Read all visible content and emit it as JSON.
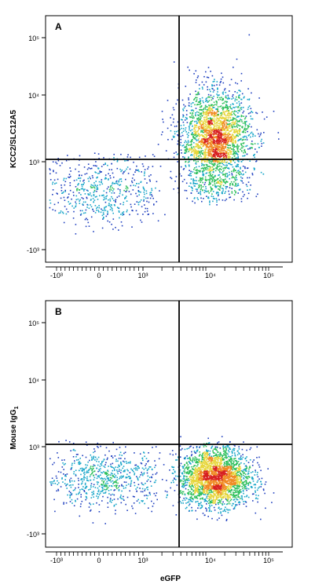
{
  "chart_data": [
    {
      "type": "scatter",
      "style": "density-dot-plot",
      "panel_label": "A",
      "ylabel": "KCC2/SLC12A5",
      "xlabel": "",
      "x_scale": "biexponential",
      "y_scale": "biexponential",
      "x_ticks": [
        "-10³",
        "0",
        "10³",
        "10⁴",
        "10⁵"
      ],
      "y_ticks": [
        "10⁵",
        "10⁴",
        "10³",
        "-10³"
      ],
      "x_gate": 3200,
      "y_gate": 1100,
      "populations": [
        {
          "name": "",
          "x_center": 14000,
          "y_center": 2200,
          "x_spread_decades": 0.28,
          "y_spread_decades": 0.4,
          "weight": 0.82
        },
        {
          "name": "",
          "x_center": 60,
          "y_center": 400,
          "x_spread_decades": 0.6,
          "y_spread_decades": 0.5,
          "weight": 0.18
        }
      ],
      "grid": false,
      "colormap": [
        "#1f3fbf",
        "#18a6c9",
        "#2dbf5b",
        "#e7d63b",
        "#f08a24",
        "#d72020"
      ]
    },
    {
      "type": "scatter",
      "style": "density-dot-plot",
      "panel_label": "B",
      "ylabel": "Mouse IgG",
      "ylabel_subscript": "1",
      "xlabel": "eGFP",
      "x_scale": "biexponential",
      "y_scale": "biexponential",
      "x_ticks": [
        "-10³",
        "0",
        "10³",
        "10⁴",
        "10⁵"
      ],
      "y_ticks": [
        "10⁵",
        "10⁴",
        "10³",
        "-10³"
      ],
      "x_gate": 3200,
      "y_gate": 1100,
      "populations": [
        {
          "name": "",
          "x_center": 14000,
          "y_center": 350,
          "x_spread_decades": 0.28,
          "y_spread_decades": 0.22,
          "weight": 0.78
        },
        {
          "name": "",
          "x_center": 80,
          "y_center": 340,
          "x_spread_decades": 0.6,
          "y_spread_decades": 0.2,
          "weight": 0.22
        }
      ],
      "grid": false,
      "colormap": [
        "#1f3fbf",
        "#18a6c9",
        "#2dbf5b",
        "#e7d63b",
        "#f08a24",
        "#d72020"
      ]
    }
  ]
}
